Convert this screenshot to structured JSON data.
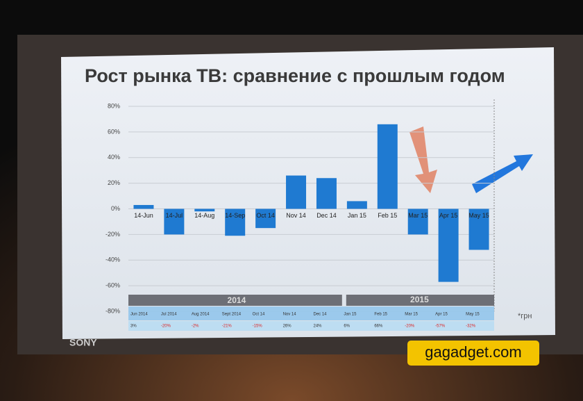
{
  "chart_data": {
    "type": "bar",
    "title": "Рост рынка ТВ: сравнение с прошлым годом",
    "categories": [
      "14-Jun",
      "14-Jul",
      "14-Aug",
      "14-Sep",
      "Oct 14",
      "Nov 14",
      "Dec 14",
      "Jan 15",
      "Feb 15",
      "Mar 15",
      "Apr 15",
      "May 15"
    ],
    "values": [
      3,
      -20,
      -2,
      -21,
      -15,
      26,
      24,
      6,
      66,
      -20,
      -57,
      -32
    ],
    "value_labels": [
      "3%",
      "-20%",
      "-2%",
      "-21%",
      "-15%",
      "26%",
      "24%",
      "6%",
      "66%",
      "-20%",
      "-57%",
      "-32%"
    ],
    "color": "#1f7ad1",
    "ylim": [
      -80,
      80
    ],
    "yticks": [
      {
        "value": -80,
        "label": "-80%"
      },
      {
        "value": -60,
        "label": "-60%"
      },
      {
        "value": -40,
        "label": "-40%"
      },
      {
        "value": -20,
        "label": "-20%"
      },
      {
        "value": 0,
        "label": "0%"
      },
      {
        "value": 20,
        "label": "20%"
      },
      {
        "value": 40,
        "label": "40%"
      },
      {
        "value": 60,
        "label": "60%"
      },
      {
        "value": 80,
        "label": "80%"
      }
    ],
    "grid": true,
    "table_headers": [
      "Jun 2014",
      "Jul 2014",
      "Aug 2014",
      "Sept 2014",
      "Oct 14",
      "Nov 14",
      "Dec 14",
      "Jan 15",
      "Feb 15",
      "Mar 15",
      "Apr 15",
      "May 15"
    ],
    "years": [
      "2014",
      "2015"
    ],
    "note": "*грн"
  },
  "brand": "SONY",
  "watermark": "gagadget.com"
}
